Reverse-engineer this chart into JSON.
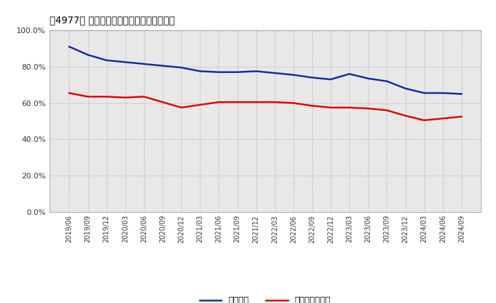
{
  "title": "［4977］ 固定比率、固定長期適合率の推移",
  "blue_label": "固定比率",
  "red_label": "固定長期適合率",
  "x_labels": [
    "2019/06",
    "2019/09",
    "2019/12",
    "2020/03",
    "2020/06",
    "2020/09",
    "2020/12",
    "2021/03",
    "2021/06",
    "2021/09",
    "2021/12",
    "2022/03",
    "2022/06",
    "2022/09",
    "2022/12",
    "2023/03",
    "2023/06",
    "2023/09",
    "2023/12",
    "2024/03",
    "2024/06",
    "2024/09"
  ],
  "blue_values": [
    91.0,
    86.5,
    83.5,
    82.5,
    81.5,
    80.5,
    79.5,
    77.5,
    77.0,
    77.0,
    77.5,
    76.5,
    75.5,
    74.0,
    73.0,
    76.0,
    73.5,
    72.0,
    68.0,
    65.5,
    65.5,
    65.0
  ],
  "red_values": [
    65.5,
    63.5,
    63.5,
    63.0,
    63.5,
    60.5,
    57.5,
    59.0,
    60.5,
    60.5,
    60.5,
    60.5,
    60.0,
    58.5,
    57.5,
    57.5,
    57.0,
    56.0,
    53.0,
    50.5,
    51.5,
    52.5
  ],
  "ylim": [
    0,
    100
  ],
  "yticks": [
    0,
    20,
    40,
    60,
    80,
    100
  ],
  "ytick_labels": [
    "0.0%",
    "20.0%",
    "40.0%",
    "60.0%",
    "80.0%",
    "100.0%"
  ],
  "blue_color": "#1428a0",
  "red_color": "#e00000",
  "grid_color": "#aaaaaa",
  "bg_color": "#ffffff",
  "plot_bg_color": "#e8e8e8"
}
